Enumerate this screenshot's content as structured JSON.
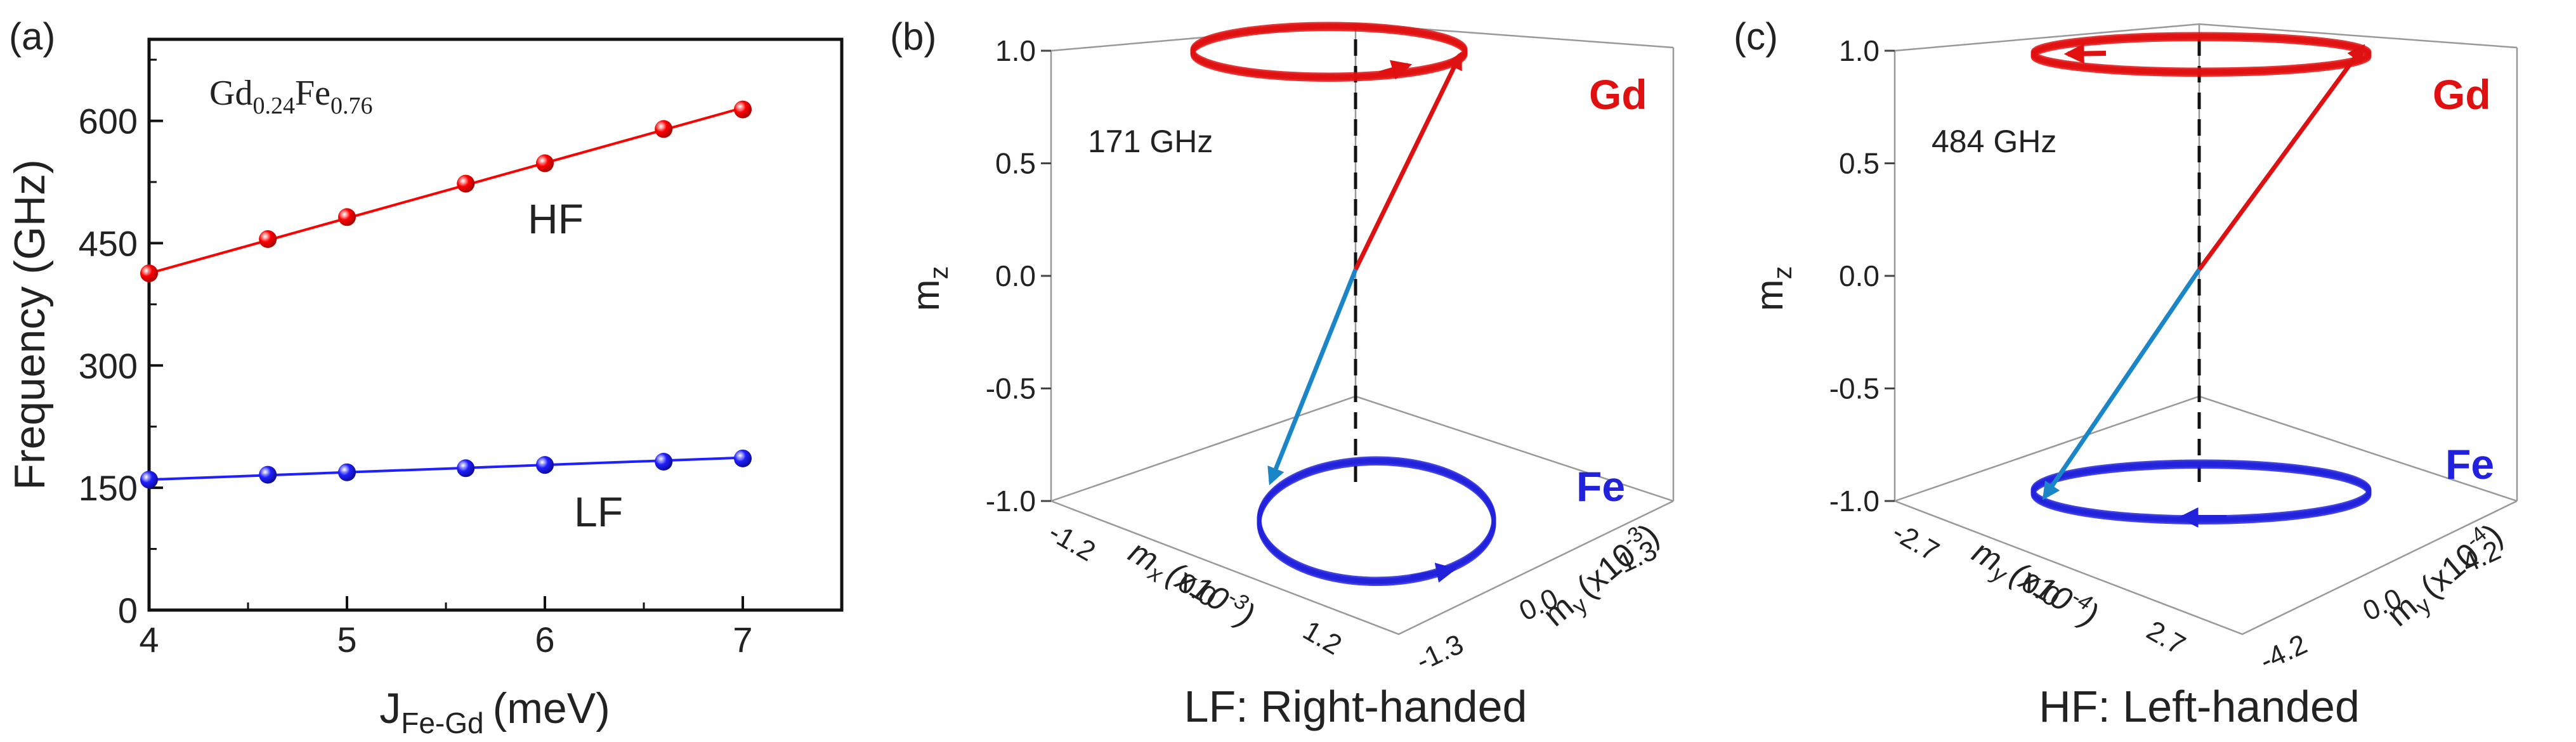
{
  "panels": {
    "a": {
      "label": "(a)"
    },
    "b": {
      "label": "(b)"
    },
    "c": {
      "label": "(c)"
    }
  },
  "chart_data": [
    {
      "type": "scatter",
      "panel": "(a)",
      "composition": {
        "base1": "Gd",
        "sub1": "0.24",
        "base2": "Fe",
        "sub2": "0.76"
      },
      "xlabel": {
        "main": "J",
        "sub": "Fe-Gd",
        "unit": "(meV)"
      },
      "ylabel": "Frequency (GHz)",
      "xlim": [
        4,
        7.5
      ],
      "ylim": [
        0,
        700
      ],
      "xticks": [
        4,
        5,
        6,
        7
      ],
      "yticks": [
        0,
        150,
        300,
        450,
        600
      ],
      "grid": false,
      "series": [
        {
          "name": "HF",
          "color": "#ff0000",
          "x": [
            4,
            4.6,
            5,
            5.6,
            6,
            6.6,
            7
          ],
          "y": [
            413,
            455,
            482,
            523,
            548,
            590,
            614
          ]
        },
        {
          "name": "LF",
          "color": "#1f1fff",
          "x": [
            4,
            4.6,
            5,
            5.6,
            6,
            6.6,
            7
          ],
          "y": [
            160,
            166,
            169,
            174,
            178,
            182,
            186
          ]
        }
      ],
      "fit_lines": [
        {
          "series": "HF",
          "x": [
            4,
            7
          ],
          "y": [
            413,
            616
          ]
        },
        {
          "series": "LF",
          "x": [
            4,
            7
          ],
          "y": [
            160,
            187
          ]
        }
      ]
    },
    {
      "type": "3d-precession",
      "panel": "(b)",
      "frequency_label": "171 GHz",
      "caption": "LF: Right-handed",
      "z_label": "m",
      "z_label_sub": "z",
      "z_ticks": [
        "1.0",
        "0.5",
        "0.0",
        "-0.5",
        "-1.0"
      ],
      "x_axis": {
        "label": "m",
        "sub": "x",
        "exp": "(x10",
        "exp_sup": "-3",
        "close": ")",
        "ticks": [
          "-1.2",
          "0.0",
          "1.2"
        ]
      },
      "y_axis": {
        "label": "m",
        "sub": "y",
        "exp": "(x10",
        "exp_sup": "-3",
        "close": ")",
        "ticks": [
          "1.3",
          "0.0",
          "-1.3"
        ]
      },
      "gd_label": "Gd",
      "fe_label": "Fe",
      "gd_color": "#e01010",
      "fe_color": "#2222dd",
      "gd_vector_color": "#dd1111",
      "fe_vector_color": "#1a86c8",
      "handedness": "right"
    },
    {
      "type": "3d-precession",
      "panel": "(c)",
      "frequency_label": "484 GHz",
      "caption": "HF: Left-handed",
      "z_label": "m",
      "z_label_sub": "z",
      "z_ticks": [
        "1.0",
        "0.5",
        "0.0",
        "-0.5",
        "-1.0"
      ],
      "x_axis": {
        "label": "m",
        "sub": "y",
        "exp": "(x10",
        "exp_sup": "-4",
        "close": ")",
        "ticks": [
          "-2.7",
          "0.0",
          "2.7"
        ]
      },
      "y_axis": {
        "label": "m",
        "sub": "y",
        "exp": "(x10",
        "exp_sup": "-4",
        "close": ")",
        "ticks": [
          "4.2",
          "0.0",
          "-4.2"
        ]
      },
      "gd_label": "Gd",
      "fe_label": "Fe",
      "gd_color": "#e01010",
      "fe_color": "#2222dd",
      "gd_vector_color": "#dd1111",
      "fe_vector_color": "#1a86c8",
      "handedness": "left"
    }
  ]
}
